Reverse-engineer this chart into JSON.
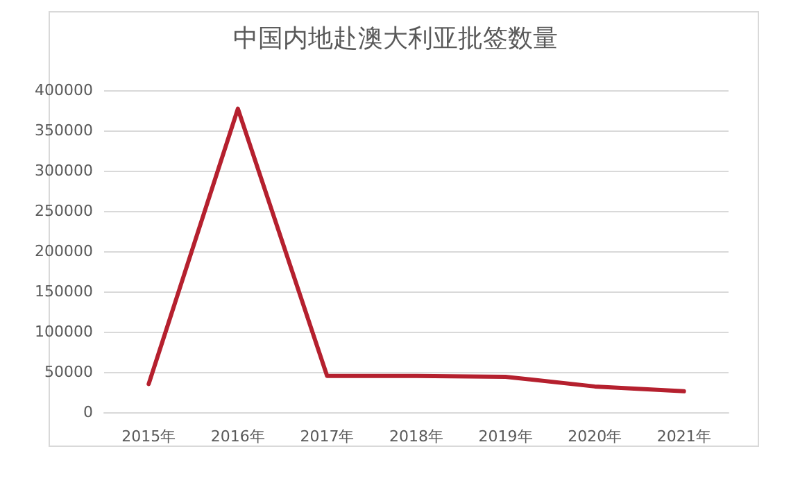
{
  "chart_data": {
    "type": "line",
    "title": "中国内地赴澳大利亚批签数量",
    "categories": [
      "2015年",
      "2016年",
      "2017年",
      "2018年",
      "2019年",
      "2020年",
      "2021年"
    ],
    "series": [
      {
        "color": "#b5202e",
        "values": [
          35000,
          377000,
          45000,
          45000,
          44000,
          32000,
          26000
        ]
      }
    ],
    "ylim": [
      0,
      400000
    ],
    "yticks": [
      0,
      50000,
      100000,
      150000,
      200000,
      250000,
      300000,
      350000,
      400000
    ],
    "grid": "y",
    "marker": "none",
    "line_style": "solid"
  }
}
